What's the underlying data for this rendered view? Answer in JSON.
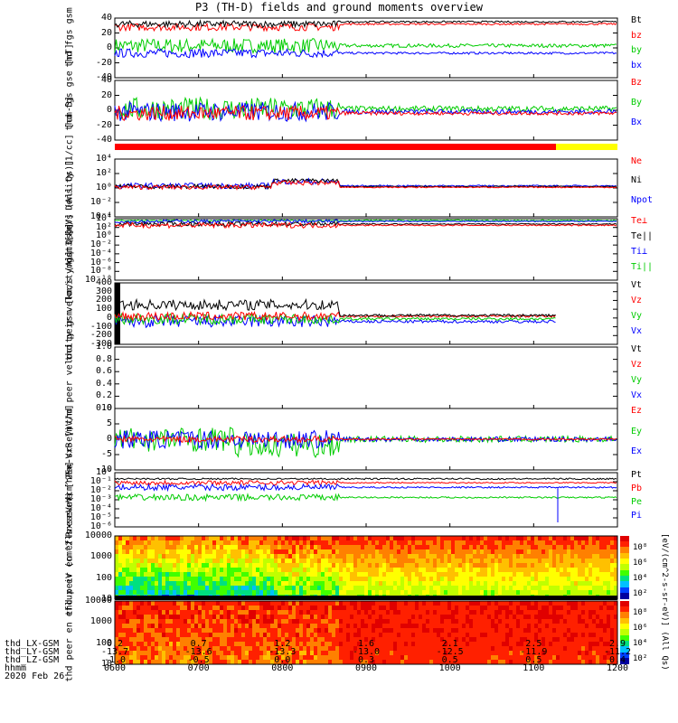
{
  "title": "P3 (TH-D) fields and ground moments overview",
  "chart_data": {
    "type": "multi-panel time series",
    "panels": [
      {
        "id": "fgs_gsm",
        "ylabel": "thd fgs gsm [nT]",
        "ylim": [
          -40,
          40
        ],
        "yticks": [
          "40",
          "20",
          "0",
          "-20",
          "-40"
        ],
        "legend": [
          {
            "label": "Bt",
            "color": "#000000"
          },
          {
            "label": "bz",
            "color": "#ff0000"
          },
          {
            "label": "by",
            "color": "#00cc00"
          },
          {
            "label": "bx",
            "color": "#0000ff"
          }
        ]
      },
      {
        "id": "fgs_gse",
        "ylabel": "thd fgs gse [nT]",
        "ylim": [
          -40,
          40
        ],
        "yticks": [
          "40",
          "20",
          "0",
          "-20",
          "-40"
        ],
        "legend": [
          {
            "label": "Bz",
            "color": "#ff0000"
          },
          {
            "label": "By",
            "color": "#00cc00"
          },
          {
            "label": "Bx",
            "color": "#0000ff"
          }
        ]
      },
      {
        "id": "density",
        "ylabel": "Density [1/cc] [cm-3]",
        "yticks": [
          "10⁴",
          "10²",
          "10⁰",
          "10⁻²",
          "10⁻⁴"
        ],
        "legend": [
          {
            "label": "Ne",
            "color": "#ff0000"
          },
          {
            "label": "Ni",
            "color": "#000000"
          },
          {
            "label": "Npot",
            "color": "#0000ff"
          }
        ]
      },
      {
        "id": "temperature",
        "ylabel": "moqt3 [eV]",
        "yticks": [
          "10⁴",
          "10²",
          "10⁰",
          "10⁻²",
          "10⁻⁴",
          "10⁻⁶",
          "10⁻⁸",
          "10⁻¹⁰"
        ],
        "legend": [
          {
            "label": "Te⊥",
            "color": "#ff0000"
          },
          {
            "label": "Te||",
            "color": "#000000"
          },
          {
            "label": "Ti⊥",
            "color": "#0000ff"
          },
          {
            "label": "Ti||",
            "color": "#00cc00"
          }
        ]
      },
      {
        "id": "peir_velocity",
        "ylabel": "thd peir velocity gsm [km/s (All Qs)]",
        "ylim": [
          -300,
          400
        ],
        "yticks": [
          "400",
          "300",
          "200",
          "100",
          "0",
          "-100",
          "-200",
          "-300"
        ],
        "legend": [
          {
            "label": "Vt",
            "color": "#000000"
          },
          {
            "label": "Vz",
            "color": "#ff0000"
          },
          {
            "label": "Vy",
            "color": "#00cc00"
          },
          {
            "label": "Vx",
            "color": "#0000ff"
          }
        ]
      },
      {
        "id": "peer_velocity",
        "ylabel": "thd peer velocity gsm [km/s (All Qs)]",
        "ylim": [
          0.0,
          1.0
        ],
        "yticks": [
          "1.0",
          "0.8",
          "0.6",
          "0.4",
          "0.2",
          "0.0"
        ],
        "legend": [
          {
            "label": "Vt",
            "color": "#000000"
          },
          {
            "label": "Vz",
            "color": "#ff0000"
          },
          {
            "label": "Vy",
            "color": "#00cc00"
          },
          {
            "label": "Vx",
            "color": "#0000ff"
          }
        ]
      },
      {
        "id": "efield",
        "ylabel": "E=-VxB [mV/m]",
        "ylim": [
          -10,
          10
        ],
        "yticks": [
          "10",
          "5",
          "0",
          "-5",
          "-10"
        ],
        "legend": [
          {
            "label": "Ez",
            "color": "#ff0000"
          },
          {
            "label": "Ey",
            "color": "#00cc00"
          },
          {
            "label": "Ex",
            "color": "#0000ff"
          }
        ]
      },
      {
        "id": "pressure",
        "ylabel": "Pressure [nPa]",
        "yticks": [
          "10¹",
          "10⁻¹",
          "10⁻²",
          "10⁻³",
          "10⁻⁴",
          "10⁻⁵",
          "10⁻⁶"
        ],
        "legend": [
          {
            "label": "Pt",
            "color": "#000000"
          },
          {
            "label": "Pb",
            "color": "#ff0000"
          },
          {
            "label": "Pe",
            "color": "#00cc00"
          },
          {
            "label": "Pi",
            "color": "#0000ff"
          }
        ]
      },
      {
        "id": "peir_spec",
        "ylabel": "thd peir en eflux eV (cm^2-s-sr-eV)",
        "yticks": [
          "10000",
          "1000",
          "100",
          "10"
        ],
        "type": "spectrogram"
      },
      {
        "id": "peer_spec",
        "ylabel": "thd peer en eflux eV (cm^2-s-sr-eV)",
        "yticks": [
          "10000",
          "1000",
          "100",
          "10"
        ],
        "type": "spectrogram"
      }
    ],
    "colorbar": {
      "label": "[eV/(cm^2-s-sr-eV)] (All Qs)",
      "top_ticks": [
        "10⁸",
        "10⁶",
        "10⁴",
        "10²"
      ],
      "bottom_ticks": [
        "10⁸",
        "10⁶",
        "10⁴",
        "10²"
      ]
    },
    "x_axis": {
      "rows": [
        {
          "label": "thd_LX-GSM",
          "values": [
            "0.2",
            "0.7",
            "1.2",
            "1.6",
            "2.1",
            "2.5",
            "2.9"
          ]
        },
        {
          "label": "thd_LY-GSM",
          "values": [
            "-13.7",
            "-13.6",
            "-13.3",
            "-13.0",
            "-12.5",
            "-11.9",
            "-11.2"
          ]
        },
        {
          "label": "thd_LZ-GSM",
          "values": [
            "-1.0",
            "-0.5",
            "0.0",
            "0.3",
            "0.5",
            "0.5",
            "0.4"
          ]
        },
        {
          "label": "hhmm",
          "values": [
            "0600",
            "0700",
            "0800",
            "0900",
            "1000",
            "1100",
            "1200"
          ]
        }
      ],
      "date": "2020 Feb 26"
    }
  }
}
